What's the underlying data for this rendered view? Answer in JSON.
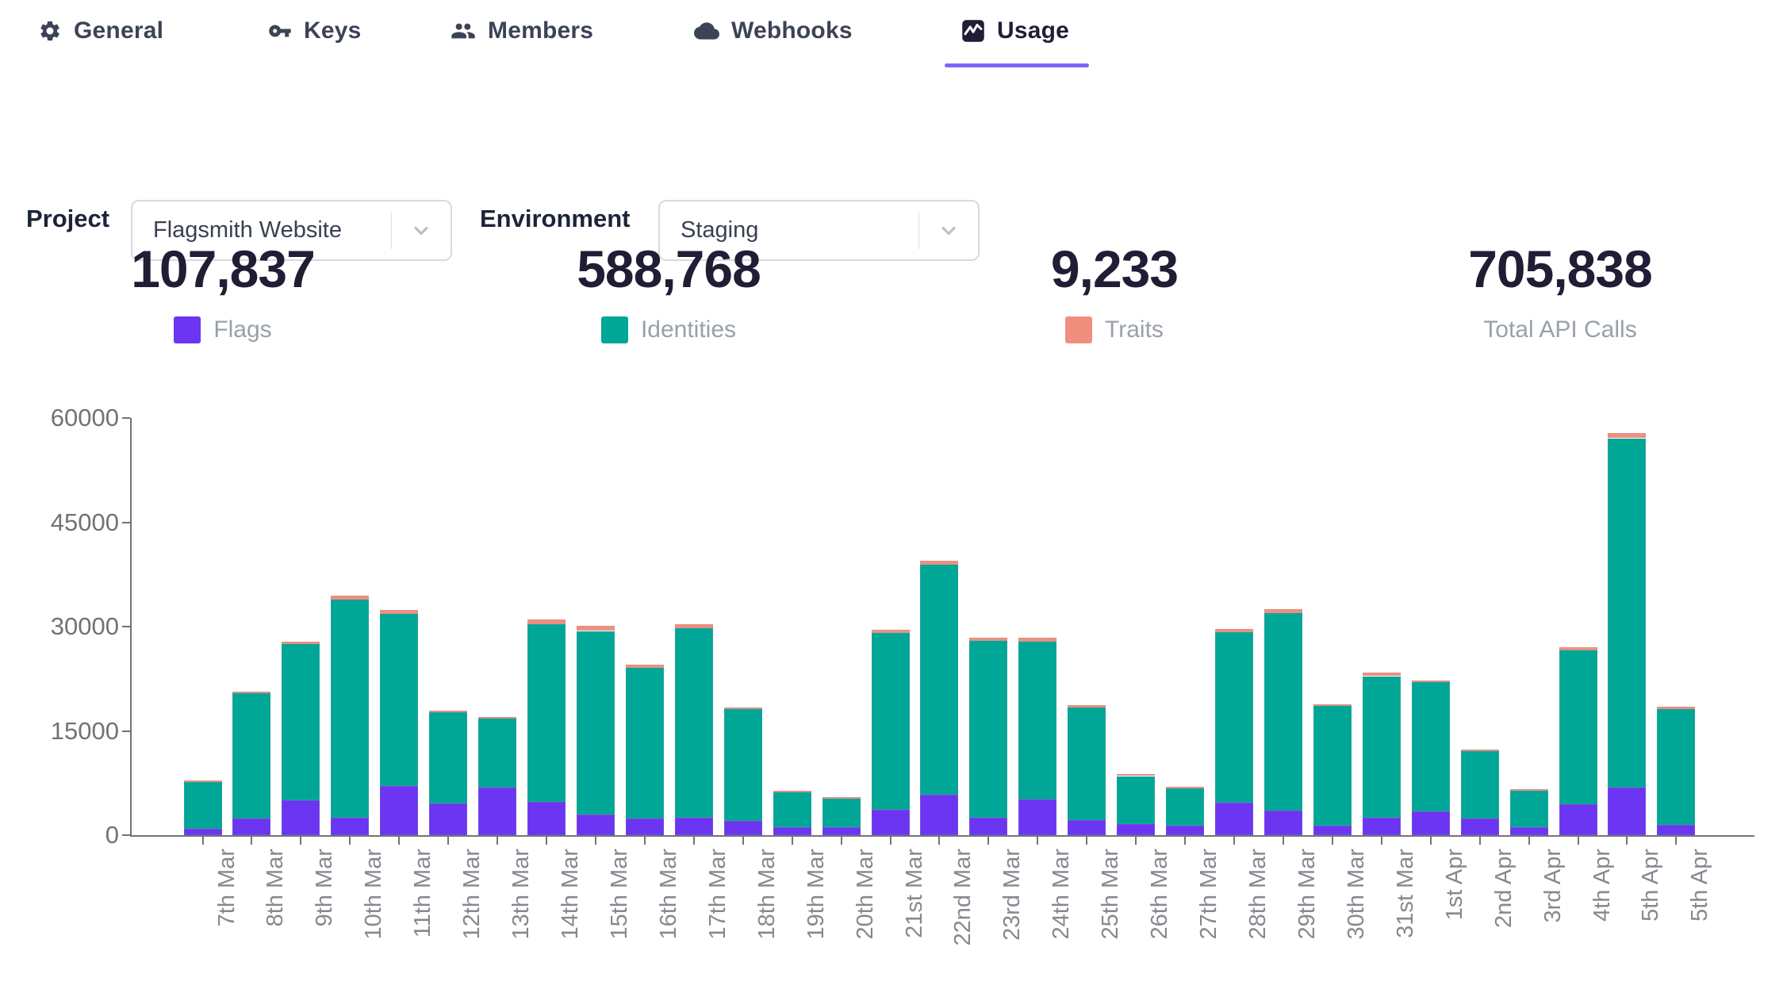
{
  "tabs": {
    "items": [
      {
        "label": "General",
        "icon": "gear-icon",
        "active": false
      },
      {
        "label": "Keys",
        "icon": "key-icon",
        "active": false
      },
      {
        "label": "Members",
        "icon": "people-icon",
        "active": false
      },
      {
        "label": "Webhooks",
        "icon": "cloud-icon",
        "active": false
      },
      {
        "label": "Usage",
        "icon": "chart-icon",
        "active": true
      }
    ],
    "active_underline_color": "#7c66f8"
  },
  "filters": {
    "project_label": "Project",
    "project_value": "Flagsmith Website",
    "environment_label": "Environment",
    "environment_value": "Staging"
  },
  "stats": [
    {
      "value": "107,837",
      "label": "Flags",
      "color": "#6b35f2"
    },
    {
      "value": "588,768",
      "label": "Identities",
      "color": "#00a696"
    },
    {
      "value": "9,233",
      "label": "Traits",
      "color": "#f18f7f"
    },
    {
      "value": "705,838",
      "label": "Total API Calls",
      "color": null
    }
  ],
  "chart_data": {
    "type": "bar",
    "stacked": true,
    "title": "",
    "xlabel": "",
    "ylabel": "",
    "ylim": [
      0,
      60000
    ],
    "yticks": [
      0,
      15000,
      30000,
      45000,
      60000
    ],
    "grid": false,
    "legend_position": "none",
    "categories": [
      "7th Mar",
      "8th Mar",
      "9th Mar",
      "10th Mar",
      "11th Mar",
      "12th Mar",
      "13th Mar",
      "14th Mar",
      "15th Mar",
      "16th Mar",
      "17th Mar",
      "18th Mar",
      "19th Mar",
      "20th Mar",
      "21st Mar",
      "22nd Mar",
      "23rd Mar",
      "24th Mar",
      "25th Mar",
      "26th Mar",
      "27th Mar",
      "28th Mar",
      "29th Mar",
      "30th Mar",
      "31st Mar",
      "1st Apr",
      "2nd Apr",
      "3rd Apr",
      "4th Apr",
      "5th Apr",
      "5th Apr"
    ],
    "series": [
      {
        "name": "Flags",
        "color": "#6b35f2",
        "values": [
          900,
          2400,
          5000,
          2500,
          7100,
          4600,
          6800,
          4800,
          3000,
          2400,
          2500,
          2000,
          1100,
          1100,
          3700,
          5850,
          2500,
          5100,
          2200,
          1600,
          1400,
          4700,
          3550,
          1400,
          2550,
          3450,
          2400,
          1100,
          4400,
          6900,
          1450
        ]
      },
      {
        "name": "Identities",
        "color": "#00a696",
        "values": [
          6700,
          18000,
          22500,
          31400,
          24700,
          13100,
          10000,
          25500,
          26400,
          21700,
          27300,
          16100,
          5100,
          4100,
          25400,
          33100,
          25500,
          22750,
          16150,
          6900,
          5350,
          24500,
          28400,
          17200,
          20350,
          18600,
          9700,
          5300,
          22200,
          50200,
          16700
        ]
      },
      {
        "name": "Traits",
        "color": "#f18f7f",
        "values": [
          100,
          200,
          300,
          600,
          600,
          100,
          100,
          700,
          650,
          400,
          600,
          250,
          100,
          100,
          450,
          550,
          450,
          550,
          380,
          100,
          100,
          500,
          600,
          200,
          450,
          200,
          100,
          100,
          450,
          650,
          300
        ]
      }
    ]
  }
}
